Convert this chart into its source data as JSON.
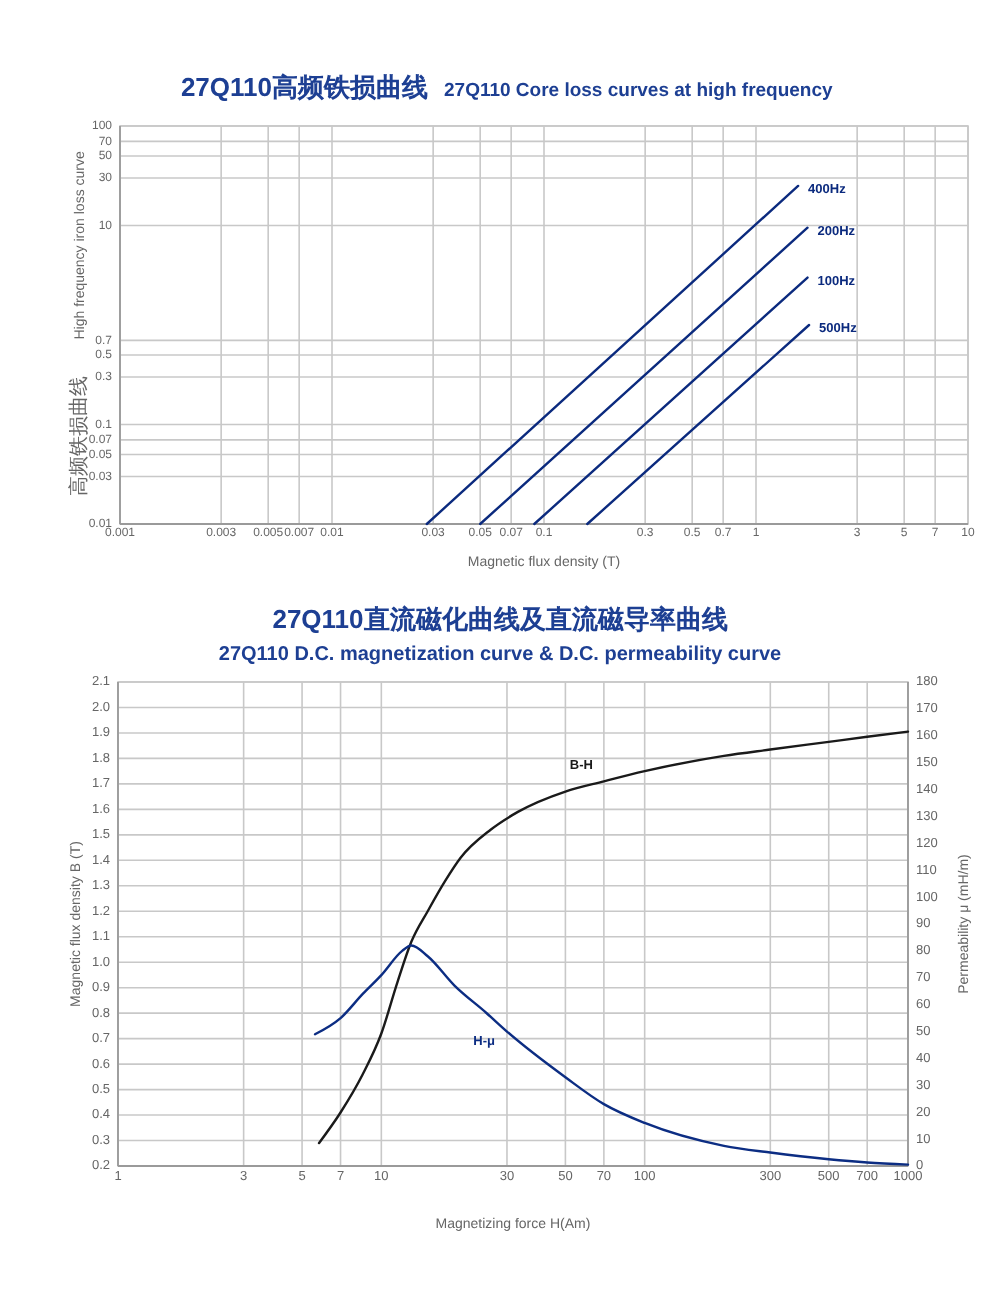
{
  "chart_data": [
    {
      "type": "line",
      "title": "27Q110高频铁损曲线",
      "subtitle": "27Q110 Core loss curves at high frequency",
      "xlabel": "Magnetic flux density (T)",
      "ylabel": "High frequency iron loss curve",
      "annotations": [
        "高频铁损曲线"
      ],
      "log": "xy",
      "grid": true,
      "xlim": [
        0.001,
        10
      ],
      "xticks": [
        0.001,
        0.003,
        0.005,
        0.007,
        0.01,
        0.03,
        0.05,
        0.07,
        0.1,
        0.3,
        0.5,
        0.7,
        1,
        3,
        5,
        7,
        10
      ],
      "ylim": [
        0.01,
        100
      ],
      "yticks": [
        0.01,
        0.03,
        0.05,
        0.07,
        0.1,
        0.3,
        0.5,
        0.7,
        10,
        30,
        50,
        70,
        100
      ],
      "series": [
        {
          "name": "400Hz",
          "color": "#0b2a7e",
          "x": [
            0.028,
            1.58
          ],
          "values": [
            0.01,
            25
          ]
        },
        {
          "name": "200Hz",
          "color": "#0b2a7e",
          "x": [
            0.05,
            1.75
          ],
          "values": [
            0.01,
            9.5
          ]
        },
        {
          "name": "100Hz",
          "color": "#0b2a7e",
          "x": [
            0.09,
            1.75
          ],
          "values": [
            0.01,
            3
          ]
        },
        {
          "name": "500Hz",
          "color": "#0b2a7e",
          "x": [
            0.16,
            1.78
          ],
          "values": [
            0.01,
            1
          ]
        }
      ]
    },
    {
      "type": "line",
      "title": "27Q110直流磁化曲线及直流磁导率曲线",
      "subtitle": "27Q110 D.C. magnetization curve & D.C. permeability curve",
      "xlabel": "Magnetizing force H(Am)",
      "ylabel": "Magnetic flux density B (T)",
      "y2label": "Permeability μ (mH/m)",
      "log": "x",
      "grid": true,
      "xlim": [
        1,
        1000
      ],
      "xticks": [
        1,
        3,
        5,
        7,
        10,
        30,
        50,
        70,
        100,
        300,
        500,
        700,
        1000
      ],
      "ylim": [
        0.2,
        2.1
      ],
      "yticks": [
        0.2,
        0.3,
        0.4,
        0.5,
        0.6,
        0.7,
        0.8,
        0.9,
        {
          "value": 1,
          "label": "1.0"
        },
        1.1,
        1.2,
        1.3,
        1.4,
        1.5,
        1.6,
        1.7,
        1.8,
        1.9,
        {
          "value": 2,
          "label": "2.0"
        },
        2.1
      ],
      "y2lim": [
        0,
        180
      ],
      "y2ticks": [
        0,
        10,
        20,
        30,
        40,
        50,
        60,
        70,
        80,
        90,
        100,
        110,
        120,
        130,
        140,
        150,
        160,
        170,
        180
      ],
      "series": [
        {
          "name": "B-H",
          "color": "#1a1a1a",
          "x": [
            5.8,
            7,
            8.5,
            10,
            11.5,
            13,
            15,
            17.5,
            20,
            26,
            33,
            50,
            70,
            100,
            200,
            300,
            500,
            700,
            1000
          ],
          "values": [
            0.29,
            0.41,
            0.56,
            0.72,
            0.92,
            1.08,
            1.2,
            1.32,
            1.41,
            1.52,
            1.59,
            1.67,
            1.71,
            1.75,
            1.81,
            1.835,
            1.865,
            1.885,
            1.905
          ]
        },
        {
          "name": "H-μ",
          "color": "#0c2d83",
          "axis": "y2",
          "x": [
            5.6,
            7,
            8.5,
            10,
            12,
            13,
            15,
            19,
            25,
            30,
            50,
            70,
            100,
            200,
            300,
            500,
            700,
            1000
          ],
          "values": [
            49,
            55,
            64,
            71,
            80,
            82,
            78,
            67,
            57,
            50,
            33,
            23,
            16,
            7.5,
            5,
            2.5,
            1.3,
            0.5
          ]
        }
      ]
    }
  ]
}
